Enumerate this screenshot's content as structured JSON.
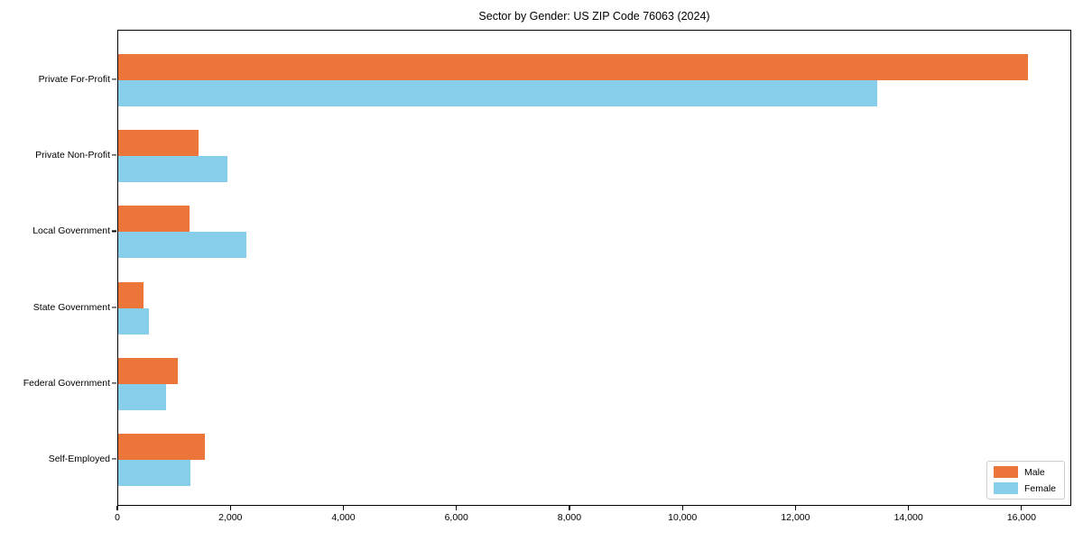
{
  "chart_data": {
    "type": "bar",
    "orientation": "horizontal",
    "title": "Sector by Gender: US ZIP Code 76063 (2024)",
    "categories": [
      "Private For-Profit",
      "Private Non-Profit",
      "Local Government",
      "State Government",
      "Federal Government",
      "Self-Employed"
    ],
    "series": [
      {
        "name": "Male",
        "color": "#ec7639",
        "values": [
          16100,
          1420,
          1260,
          440,
          1060,
          1530
        ]
      },
      {
        "name": "Female",
        "color": "#87ceeb",
        "values": [
          13430,
          1930,
          2270,
          550,
          850,
          1280
        ]
      }
    ],
    "xlabel": "",
    "ylabel": "",
    "xlim": [
      0,
      16880
    ],
    "xticks": [
      0,
      2000,
      4000,
      6000,
      8000,
      10000,
      12000,
      14000,
      16000
    ],
    "xtick_labels": [
      "0",
      "2,000",
      "4,000",
      "6,000",
      "8,000",
      "10,000",
      "12,000",
      "14,000",
      "16,000"
    ],
    "grid": false,
    "legend_position": "lower right",
    "colors": {
      "male": "#ec7639",
      "female": "#87ceeb",
      "spine": "#000000",
      "legend_border": "#cccccc"
    }
  }
}
